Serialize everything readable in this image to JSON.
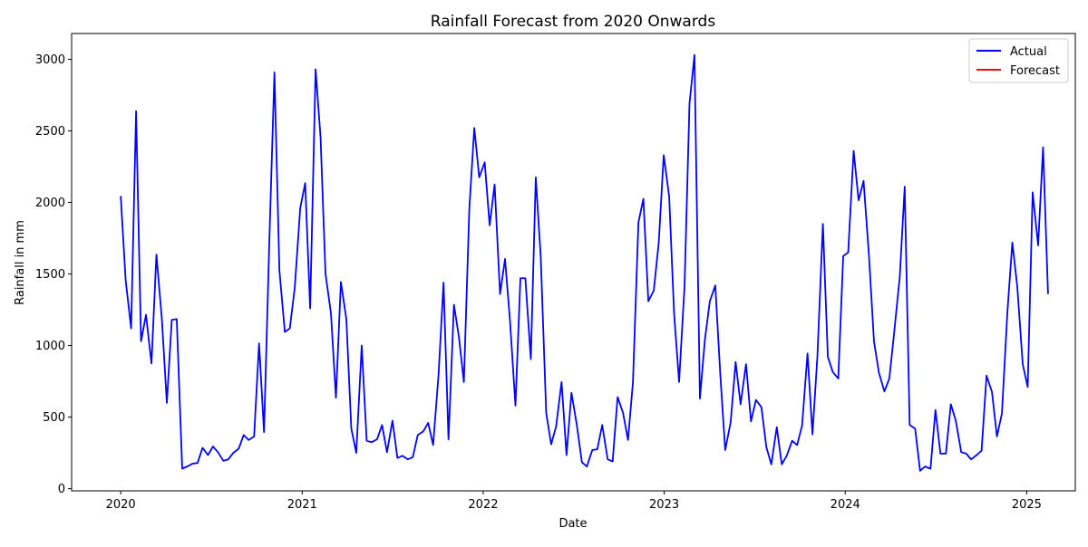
{
  "chart_data": {
    "type": "line",
    "title": "Rainfall Forecast from 2020 Onwards",
    "xlabel": "Date",
    "ylabel": "Rainfall in mm",
    "xlim": [
      "2019-09-24",
      "2025-04-09"
    ],
    "ylim": [
      -15,
      3180
    ],
    "x_ticks": [
      {
        "date": "2020-01-01",
        "label": "2020"
      },
      {
        "date": "2021-01-01",
        "label": "2021"
      },
      {
        "date": "2022-01-01",
        "label": "2022"
      },
      {
        "date": "2023-01-01",
        "label": "2023"
      },
      {
        "date": "2024-01-01",
        "label": "2024"
      },
      {
        "date": "2025-01-01",
        "label": "2025"
      }
    ],
    "y_ticks": [
      0,
      500,
      1000,
      1500,
      2000,
      2500,
      3000
    ],
    "grid": false,
    "legend_position": "top-right",
    "series": [
      {
        "name": "Actual",
        "color": "#0000ff",
        "points": [
          [
            "2020-01-01",
            2045
          ],
          [
            "2020-01-11",
            1455
          ],
          [
            "2020-01-22",
            1120
          ],
          [
            "2020-02-01",
            2638
          ],
          [
            "2020-02-11",
            1030
          ],
          [
            "2020-02-21",
            1215
          ],
          [
            "2020-03-03",
            875
          ],
          [
            "2020-03-13",
            1635
          ],
          [
            "2020-03-24",
            1185
          ],
          [
            "2020-04-03",
            600
          ],
          [
            "2020-04-13",
            1180
          ],
          [
            "2020-04-23",
            1185
          ],
          [
            "2020-05-04",
            140
          ],
          [
            "2020-05-14",
            155
          ],
          [
            "2020-05-25",
            175
          ],
          [
            "2020-06-04",
            180
          ],
          [
            "2020-06-14",
            285
          ],
          [
            "2020-06-25",
            235
          ],
          [
            "2020-07-05",
            295
          ],
          [
            "2020-07-15",
            255
          ],
          [
            "2020-07-26",
            195
          ],
          [
            "2020-08-05",
            205
          ],
          [
            "2020-08-15",
            250
          ],
          [
            "2020-08-26",
            280
          ],
          [
            "2020-09-05",
            375
          ],
          [
            "2020-09-15",
            340
          ],
          [
            "2020-09-26",
            365
          ],
          [
            "2020-10-06",
            1015
          ],
          [
            "2020-10-16",
            395
          ],
          [
            "2020-10-27",
            1765
          ],
          [
            "2020-11-06",
            2908
          ],
          [
            "2020-11-16",
            1525
          ],
          [
            "2020-11-27",
            1095
          ],
          [
            "2020-12-07",
            1120
          ],
          [
            "2020-12-17",
            1405
          ],
          [
            "2020-12-28",
            1960
          ],
          [
            "2021-01-07",
            2135
          ],
          [
            "2021-01-17",
            1260
          ],
          [
            "2021-01-28",
            2930
          ],
          [
            "2021-02-07",
            2455
          ],
          [
            "2021-02-17",
            1500
          ],
          [
            "2021-02-28",
            1225
          ],
          [
            "2021-03-10",
            635
          ],
          [
            "2021-03-20",
            1445
          ],
          [
            "2021-03-31",
            1185
          ],
          [
            "2021-04-10",
            420
          ],
          [
            "2021-04-20",
            250
          ],
          [
            "2021-05-01",
            1000
          ],
          [
            "2021-05-11",
            335
          ],
          [
            "2021-05-21",
            325
          ],
          [
            "2021-06-01",
            345
          ],
          [
            "2021-06-11",
            445
          ],
          [
            "2021-06-21",
            255
          ],
          [
            "2021-07-02",
            475
          ],
          [
            "2021-07-12",
            215
          ],
          [
            "2021-07-22",
            230
          ],
          [
            "2021-08-02",
            205
          ],
          [
            "2021-08-12",
            220
          ],
          [
            "2021-08-22",
            375
          ],
          [
            "2021-09-02",
            400
          ],
          [
            "2021-09-12",
            460
          ],
          [
            "2021-09-22",
            305
          ],
          [
            "2021-10-03",
            800
          ],
          [
            "2021-10-13",
            1440
          ],
          [
            "2021-10-23",
            345
          ],
          [
            "2021-11-03",
            1285
          ],
          [
            "2021-11-13",
            1060
          ],
          [
            "2021-11-23",
            745
          ],
          [
            "2021-12-04",
            1955
          ],
          [
            "2021-12-14",
            2520
          ],
          [
            "2021-12-24",
            2175
          ],
          [
            "2022-01-04",
            2280
          ],
          [
            "2022-01-14",
            1840
          ],
          [
            "2022-01-24",
            2125
          ],
          [
            "2022-02-04",
            1360
          ],
          [
            "2022-02-14",
            1605
          ],
          [
            "2022-02-24",
            1175
          ],
          [
            "2022-03-07",
            580
          ],
          [
            "2022-03-17",
            1470
          ],
          [
            "2022-03-27",
            1470
          ],
          [
            "2022-04-07",
            905
          ],
          [
            "2022-04-17",
            2175
          ],
          [
            "2022-04-27",
            1620
          ],
          [
            "2022-05-08",
            530
          ],
          [
            "2022-05-18",
            310
          ],
          [
            "2022-05-28",
            435
          ],
          [
            "2022-06-08",
            745
          ],
          [
            "2022-06-18",
            235
          ],
          [
            "2022-06-28",
            670
          ],
          [
            "2022-07-09",
            440
          ],
          [
            "2022-07-19",
            185
          ],
          [
            "2022-07-29",
            155
          ],
          [
            "2022-08-09",
            270
          ],
          [
            "2022-08-19",
            275
          ],
          [
            "2022-08-29",
            445
          ],
          [
            "2022-09-09",
            205
          ],
          [
            "2022-09-19",
            190
          ],
          [
            "2022-09-29",
            640
          ],
          [
            "2022-10-10",
            530
          ],
          [
            "2022-10-20",
            340
          ],
          [
            "2022-10-30",
            745
          ],
          [
            "2022-11-10",
            1860
          ],
          [
            "2022-11-20",
            2025
          ],
          [
            "2022-11-30",
            1310
          ],
          [
            "2022-12-11",
            1385
          ],
          [
            "2022-12-21",
            1720
          ],
          [
            "2022-12-31",
            2330
          ],
          [
            "2023-01-11",
            2040
          ],
          [
            "2023-01-21",
            1220
          ],
          [
            "2023-01-31",
            745
          ],
          [
            "2023-02-11",
            1415
          ],
          [
            "2023-02-21",
            2690
          ],
          [
            "2023-03-03",
            3030
          ],
          [
            "2023-03-14",
            630
          ],
          [
            "2023-03-24",
            1040
          ],
          [
            "2023-04-03",
            1310
          ],
          [
            "2023-04-14",
            1420
          ],
          [
            "2023-04-24",
            805
          ],
          [
            "2023-05-04",
            270
          ],
          [
            "2023-05-15",
            465
          ],
          [
            "2023-05-25",
            885
          ],
          [
            "2023-06-04",
            590
          ],
          [
            "2023-06-15",
            870
          ],
          [
            "2023-06-25",
            470
          ],
          [
            "2023-07-05",
            620
          ],
          [
            "2023-07-16",
            570
          ],
          [
            "2023-07-26",
            290
          ],
          [
            "2023-08-05",
            170
          ],
          [
            "2023-08-16",
            430
          ],
          [
            "2023-08-26",
            170
          ],
          [
            "2023-09-05",
            230
          ],
          [
            "2023-09-16",
            335
          ],
          [
            "2023-09-26",
            305
          ],
          [
            "2023-10-06",
            440
          ],
          [
            "2023-10-17",
            945
          ],
          [
            "2023-10-27",
            380
          ],
          [
            "2023-11-06",
            930
          ],
          [
            "2023-11-17",
            1850
          ],
          [
            "2023-11-27",
            920
          ],
          [
            "2023-12-07",
            815
          ],
          [
            "2023-12-18",
            770
          ],
          [
            "2023-12-28",
            1625
          ],
          [
            "2024-01-07",
            1650
          ],
          [
            "2024-01-18",
            2360
          ],
          [
            "2024-01-28",
            2015
          ],
          [
            "2024-02-07",
            2150
          ],
          [
            "2024-02-18",
            1625
          ],
          [
            "2024-02-28",
            1030
          ],
          [
            "2024-03-09",
            810
          ],
          [
            "2024-03-20",
            680
          ],
          [
            "2024-03-30",
            770
          ],
          [
            "2024-04-09",
            1100
          ],
          [
            "2024-04-20",
            1480
          ],
          [
            "2024-04-30",
            2110
          ],
          [
            "2024-05-10",
            445
          ],
          [
            "2024-05-21",
            420
          ],
          [
            "2024-05-31",
            125
          ],
          [
            "2024-06-10",
            155
          ],
          [
            "2024-06-21",
            140
          ],
          [
            "2024-07-01",
            550
          ],
          [
            "2024-07-11",
            245
          ],
          [
            "2024-07-22",
            245
          ],
          [
            "2024-08-01",
            590
          ],
          [
            "2024-08-11",
            475
          ],
          [
            "2024-08-22",
            255
          ],
          [
            "2024-09-01",
            245
          ],
          [
            "2024-09-11",
            205
          ],
          [
            "2024-09-22",
            235
          ],
          [
            "2024-10-02",
            265
          ],
          [
            "2024-10-12",
            790
          ],
          [
            "2024-10-23",
            675
          ],
          [
            "2024-11-02",
            365
          ],
          [
            "2024-11-12",
            525
          ],
          [
            "2024-11-23",
            1230
          ],
          [
            "2024-12-03",
            1720
          ],
          [
            "2024-12-13",
            1410
          ],
          [
            "2024-12-24",
            870
          ],
          [
            "2025-01-03",
            710
          ],
          [
            "2025-01-13",
            2070
          ],
          [
            "2025-01-24",
            1700
          ],
          [
            "2025-02-03",
            2385
          ],
          [
            "2025-02-13",
            1360
          ]
        ]
      },
      {
        "name": "Forecast",
        "color": "#ff0000",
        "points": []
      }
    ]
  }
}
